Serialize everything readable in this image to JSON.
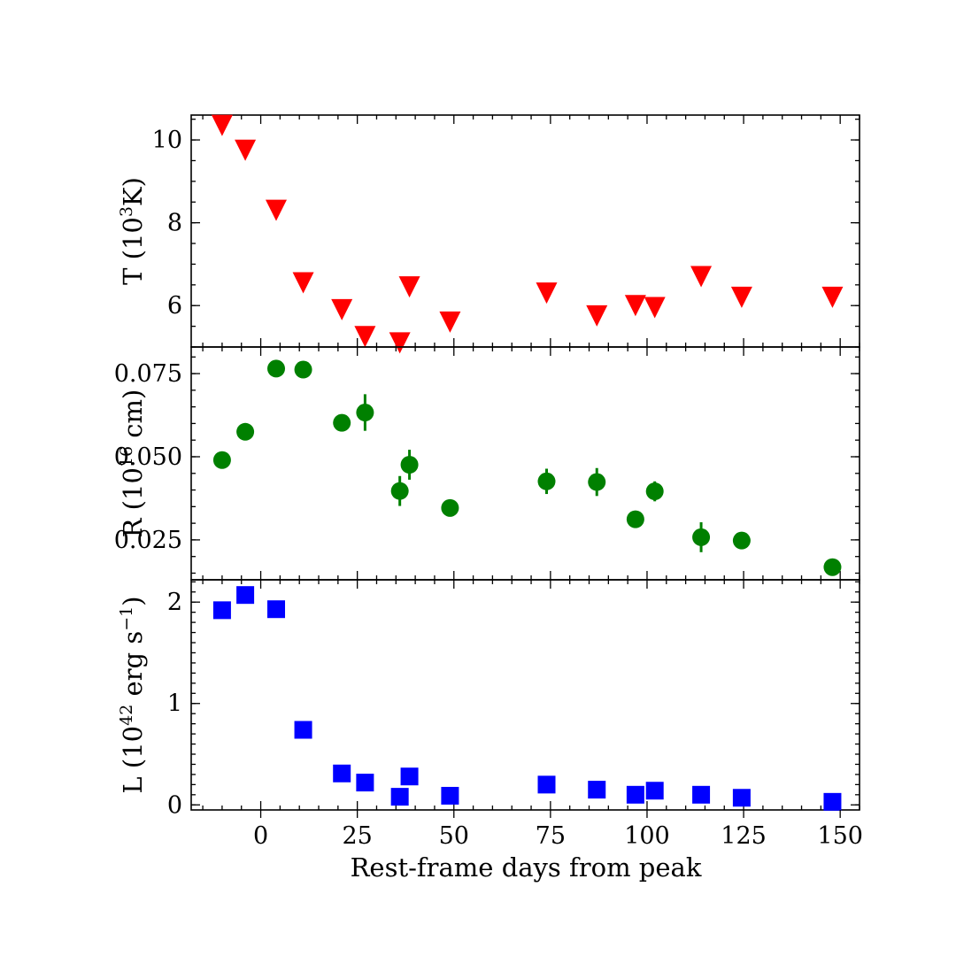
{
  "chart_data": {
    "type": "scatter",
    "shared_x": {
      "label": "Rest-frame days from peak",
      "xlim": [
        -18,
        155
      ],
      "major_ticks": [
        0,
        25,
        50,
        75,
        100,
        125,
        150
      ],
      "tick_labels": [
        "0",
        "25",
        "50",
        "75",
        "100",
        "125",
        "150"
      ]
    },
    "panels": [
      {
        "id": "T",
        "ylabel": {
          "prefix": "T (10",
          "sup": "3",
          "suffix": "K)"
        },
        "ylim": [
          5.0,
          10.6
        ],
        "major_ticks": [
          6,
          8,
          10
        ],
        "tick_labels": [
          "6",
          "8",
          "10"
        ],
        "minor_step": 0.5,
        "marker": "triangle-down",
        "color": "#ff0000",
        "points": [
          {
            "x": -10,
            "y": 10.35
          },
          {
            "x": -4,
            "y": 9.75
          },
          {
            "x": 4,
            "y": 8.3
          },
          {
            "x": 11,
            "y": 6.55
          },
          {
            "x": 21,
            "y": 5.9
          },
          {
            "x": 27,
            "y": 5.25
          },
          {
            "x": 36,
            "y": 5.1
          },
          {
            "x": 38.5,
            "y": 6.45
          },
          {
            "x": 49,
            "y": 5.6
          },
          {
            "x": 74,
            "y": 6.3
          },
          {
            "x": 87,
            "y": 5.75
          },
          {
            "x": 97,
            "y": 6.0
          },
          {
            "x": 102,
            "y": 5.95
          },
          {
            "x": 114,
            "y": 6.7
          },
          {
            "x": 124.5,
            "y": 6.2
          },
          {
            "x": 148,
            "y": 6.2
          }
        ]
      },
      {
        "id": "R",
        "ylabel": {
          "prefix": "R (10",
          "sup": "16",
          "suffix": " cm)"
        },
        "ylim": [
          0.013,
          0.083
        ],
        "major_ticks": [
          0.025,
          0.05,
          0.075
        ],
        "tick_labels": [
          "0.025",
          "0.050",
          "0.075"
        ],
        "minor_step": 0.005,
        "marker": "circle",
        "color": "#008000",
        "points": [
          {
            "x": -10,
            "y": 0.049,
            "err": 0.0
          },
          {
            "x": -4,
            "y": 0.0575,
            "err": 0.0
          },
          {
            "x": 4,
            "y": 0.0765,
            "err": 0.0
          },
          {
            "x": 11,
            "y": 0.0762,
            "err": 0.0
          },
          {
            "x": 21,
            "y": 0.0602,
            "err": 0.0
          },
          {
            "x": 27,
            "y": 0.0633,
            "err": 0.0055
          },
          {
            "x": 36,
            "y": 0.0397,
            "err": 0.0045
          },
          {
            "x": 38.5,
            "y": 0.0476,
            "err": 0.0045
          },
          {
            "x": 49,
            "y": 0.0346,
            "err": 0.0
          },
          {
            "x": 74,
            "y": 0.0426,
            "err": 0.0038
          },
          {
            "x": 87,
            "y": 0.0424,
            "err": 0.0042
          },
          {
            "x": 97,
            "y": 0.0312,
            "err": 0.0
          },
          {
            "x": 102,
            "y": 0.0396,
            "err": 0.003
          },
          {
            "x": 114,
            "y": 0.0258,
            "err": 0.0045
          },
          {
            "x": 124.5,
            "y": 0.0248,
            "err": 0.0
          },
          {
            "x": 148,
            "y": 0.0168,
            "err": 0.0
          }
        ]
      },
      {
        "id": "L",
        "ylabel": {
          "prefix": "L (10",
          "sup": "42",
          "suffix": " erg s",
          "sup2": "−1",
          "suffix2": ")"
        },
        "ylim": [
          -0.05,
          2.22
        ],
        "major_ticks": [
          0,
          1,
          2
        ],
        "tick_labels": [
          "0",
          "1",
          "2"
        ],
        "minor_step": 0.1,
        "marker": "square",
        "color": "#0000ff",
        "points": [
          {
            "x": -10,
            "y": 1.92
          },
          {
            "x": -4,
            "y": 2.07
          },
          {
            "x": 4,
            "y": 1.93
          },
          {
            "x": 11,
            "y": 0.74
          },
          {
            "x": 21,
            "y": 0.31
          },
          {
            "x": 27,
            "y": 0.22
          },
          {
            "x": 36,
            "y": 0.08
          },
          {
            "x": 38.5,
            "y": 0.28
          },
          {
            "x": 49,
            "y": 0.09
          },
          {
            "x": 74,
            "y": 0.2
          },
          {
            "x": 87,
            "y": 0.15
          },
          {
            "x": 97,
            "y": 0.1
          },
          {
            "x": 102,
            "y": 0.14
          },
          {
            "x": 114,
            "y": 0.1
          },
          {
            "x": 124.5,
            "y": 0.07
          },
          {
            "x": 148,
            "y": 0.03
          }
        ]
      }
    ]
  }
}
